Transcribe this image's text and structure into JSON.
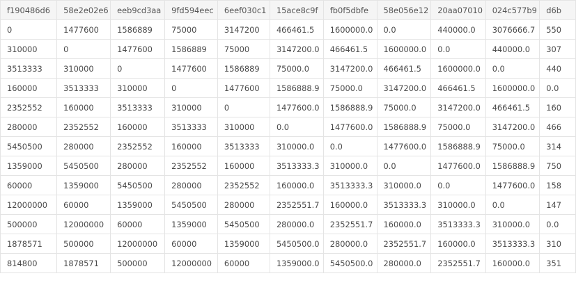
{
  "table": {
    "columns": [
      "f190486d6",
      "58e2e02e6",
      "eeb9cd3aa",
      "9fd594eec",
      "6eef030c1",
      "15ace8c9f",
      "fb0f5dbfe",
      "58e056e12",
      "20aa07010",
      "024c577b9",
      "d6b"
    ],
    "rows": [
      [
        "0",
        "1477600",
        "1586889",
        "75000",
        "3147200",
        "466461.5",
        "1600000.0",
        "0.0",
        "440000.0",
        "3076666.7",
        "550"
      ],
      [
        "310000",
        "0",
        "1477600",
        "1586889",
        "75000",
        "3147200.0",
        "466461.5",
        "1600000.0",
        "0.0",
        "440000.0",
        "307"
      ],
      [
        "3513333",
        "310000",
        "0",
        "1477600",
        "1586889",
        "75000.0",
        "3147200.0",
        "466461.5",
        "1600000.0",
        "0.0",
        "440"
      ],
      [
        "160000",
        "3513333",
        "310000",
        "0",
        "1477600",
        "1586888.9",
        "75000.0",
        "3147200.0",
        "466461.5",
        "1600000.0",
        "0.0"
      ],
      [
        "2352552",
        "160000",
        "3513333",
        "310000",
        "0",
        "1477600.0",
        "1586888.9",
        "75000.0",
        "3147200.0",
        "466461.5",
        "160"
      ],
      [
        "280000",
        "2352552",
        "160000",
        "3513333",
        "310000",
        "0.0",
        "1477600.0",
        "1586888.9",
        "75000.0",
        "3147200.0",
        "466"
      ],
      [
        "5450500",
        "280000",
        "2352552",
        "160000",
        "3513333",
        "310000.0",
        "0.0",
        "1477600.0",
        "1586888.9",
        "75000.0",
        "314"
      ],
      [
        "1359000",
        "5450500",
        "280000",
        "2352552",
        "160000",
        "3513333.3",
        "310000.0",
        "0.0",
        "1477600.0",
        "1586888.9",
        "750"
      ],
      [
        "60000",
        "1359000",
        "5450500",
        "280000",
        "2352552",
        "160000.0",
        "3513333.3",
        "310000.0",
        "0.0",
        "1477600.0",
        "158"
      ],
      [
        "12000000",
        "60000",
        "1359000",
        "5450500",
        "280000",
        "2352551.7",
        "160000.0",
        "3513333.3",
        "310000.0",
        "0.0",
        "147"
      ],
      [
        "500000",
        "12000000",
        "60000",
        "1359000",
        "5450500",
        "280000.0",
        "2352551.7",
        "160000.0",
        "3513333.3",
        "310000.0",
        "0.0"
      ],
      [
        "1878571",
        "500000",
        "12000000",
        "60000",
        "1359000",
        "5450500.0",
        "280000.0",
        "2352551.7",
        "160000.0",
        "3513333.3",
        "310"
      ],
      [
        "814800",
        "1878571",
        "500000",
        "12000000",
        "60000",
        "1359000.0",
        "5450500.0",
        "280000.0",
        "2352551.7",
        "160000.0",
        "351"
      ]
    ]
  }
}
